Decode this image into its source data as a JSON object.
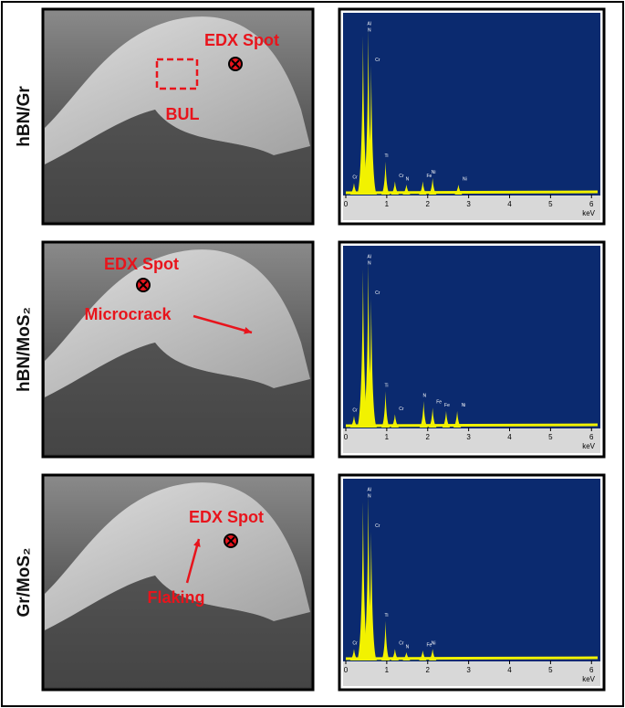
{
  "rows": [
    {
      "label": "hBN/Gr",
      "annotations": [
        "EDX Spot",
        "BUL"
      ],
      "spectrum": {
        "peaks": [
          {
            "label": "Cr",
            "kev": 0.2,
            "height": 0.07
          },
          {
            "label": "N",
            "kev": 0.42,
            "height": 0.96
          },
          {
            "label": "Al",
            "kev": 0.55,
            "height": 1.0
          },
          {
            "label": "Cr",
            "kev": 0.62,
            "height": 0.78
          },
          {
            "label": "Ti",
            "kev": 0.97,
            "height": 0.2
          },
          {
            "label": "Cr",
            "kev": 1.2,
            "height": 0.08
          },
          {
            "label": "N",
            "kev": 1.48,
            "height": 0.06
          },
          {
            "label": "Fe",
            "kev": 1.88,
            "height": 0.08
          },
          {
            "label": "Ni",
            "kev": 2.12,
            "height": 0.1
          },
          {
            "label": "Ni",
            "kev": 2.75,
            "height": 0.06
          }
        ]
      }
    },
    {
      "label": "hBN/MoS₂",
      "annotations": [
        "EDX Spot",
        "Microcrack"
      ],
      "spectrum": {
        "peaks": [
          {
            "label": "Cr",
            "kev": 0.2,
            "height": 0.07
          },
          {
            "label": "N",
            "kev": 0.42,
            "height": 0.96
          },
          {
            "label": "Al",
            "kev": 0.55,
            "height": 1.0
          },
          {
            "label": "Cr",
            "kev": 0.62,
            "height": 0.78
          },
          {
            "label": "Ti",
            "kev": 0.97,
            "height": 0.22
          },
          {
            "label": "Cr",
            "kev": 1.2,
            "height": 0.08
          },
          {
            "label": "N",
            "kev": 1.9,
            "height": 0.16
          },
          {
            "label": "Fe",
            "kev": 2.12,
            "height": 0.12
          },
          {
            "label": "Fe",
            "kev": 2.45,
            "height": 0.1
          },
          {
            "label": "Ni",
            "kev": 2.72,
            "height": 0.1
          }
        ]
      }
    },
    {
      "label": "Gr/MoS₂",
      "annotations": [
        "EDX Spot",
        "Flaking"
      ],
      "spectrum": {
        "peaks": [
          {
            "label": "Cr",
            "kev": 0.2,
            "height": 0.07
          },
          {
            "label": "N",
            "kev": 0.42,
            "height": 0.96
          },
          {
            "label": "Al",
            "kev": 0.55,
            "height": 1.0
          },
          {
            "label": "Cr",
            "kev": 0.62,
            "height": 0.78
          },
          {
            "label": "Ti",
            "kev": 0.97,
            "height": 0.24
          },
          {
            "label": "Cr",
            "kev": 1.2,
            "height": 0.07
          },
          {
            "label": "N",
            "kev": 1.48,
            "height": 0.05
          },
          {
            "label": "Fe",
            "kev": 1.88,
            "height": 0.06
          },
          {
            "label": "Ni",
            "kev": 2.12,
            "height": 0.07
          }
        ]
      }
    }
  ],
  "spectrum_axis": {
    "xlim": [
      0,
      6.15
    ],
    "xticks": [
      0,
      1,
      2,
      3,
      4,
      5,
      6
    ],
    "unit": "keV"
  }
}
